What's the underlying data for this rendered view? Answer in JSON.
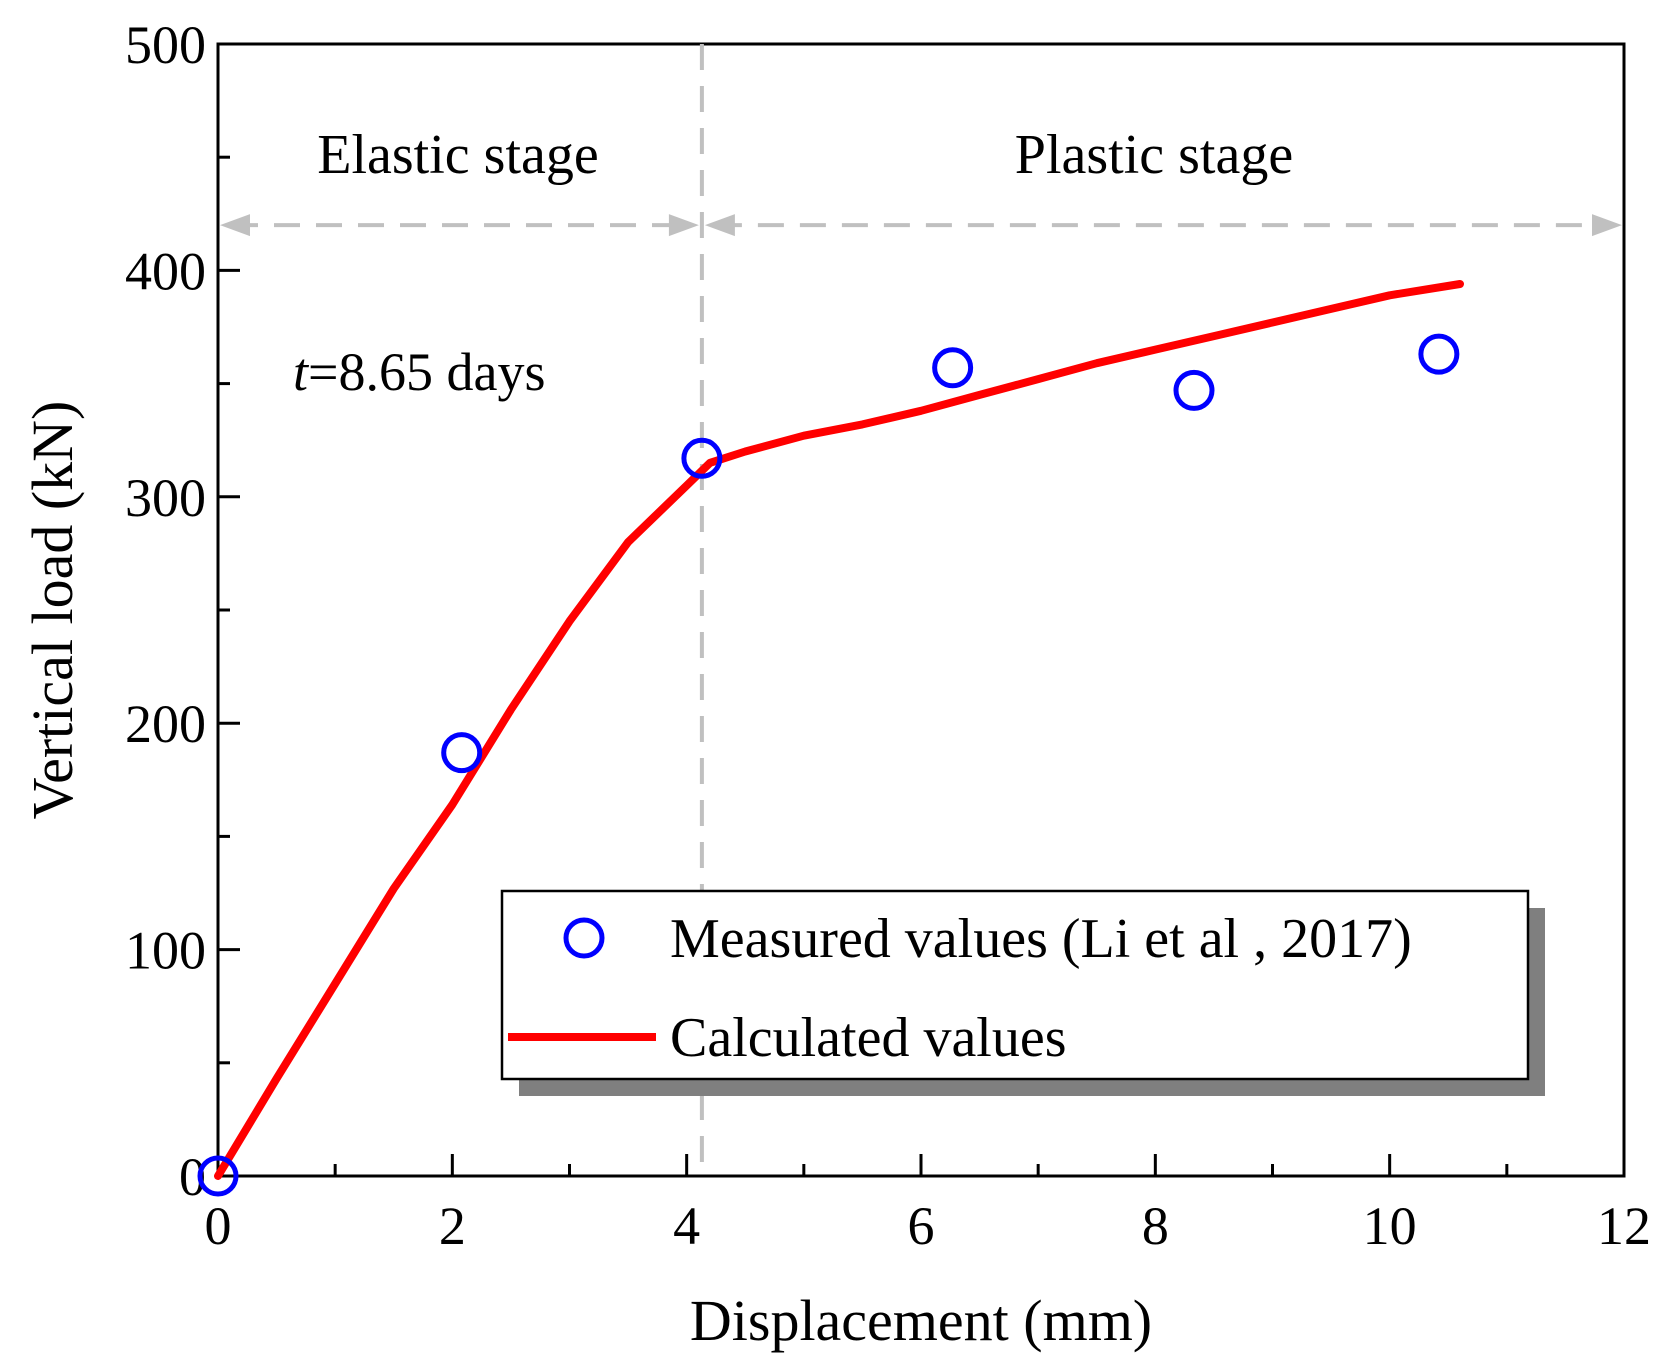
{
  "chart_data": {
    "type": "scatter+line",
    "title": "",
    "xlabel": "Displacement (mm)",
    "ylabel": "Vertical load (kN)",
    "xlim": [
      0,
      12
    ],
    "ylim": [
      0,
      500
    ],
    "x_ticks": [
      0,
      2,
      4,
      6,
      8,
      10,
      12
    ],
    "y_ticks": [
      0,
      100,
      200,
      300,
      400,
      500
    ],
    "x_tick_labels": [
      "0",
      "2",
      "4",
      "6",
      "8",
      "10",
      "12"
    ],
    "y_tick_labels": [
      "0",
      "100",
      "200",
      "300",
      "400",
      "500"
    ],
    "grid": false,
    "series": [
      {
        "name": "Measured values (Li et al , 2017)",
        "kind": "scatter",
        "marker": "open-circle",
        "color": "#0000ff",
        "x": [
          0,
          2.08,
          4.13,
          6.27,
          8.33,
          10.42
        ],
        "y": [
          0,
          187,
          317,
          357,
          347,
          363
        ]
      },
      {
        "name": "Calculated values",
        "kind": "line",
        "color": "#ff0000",
        "x": [
          0,
          0.5,
          1.0,
          1.5,
          2.0,
          2.5,
          3.0,
          3.5,
          4.0,
          4.2,
          4.5,
          5.0,
          5.5,
          6.0,
          6.5,
          7.0,
          7.5,
          8.0,
          8.5,
          9.0,
          9.5,
          10.0,
          10.6
        ],
        "y": [
          0,
          43,
          85,
          127,
          164,
          206,
          245,
          280,
          305,
          315,
          320,
          327,
          332,
          338,
          345,
          352,
          359,
          365,
          371,
          377,
          383,
          389,
          394
        ]
      }
    ],
    "stage_divider_x": 4.13,
    "stage_arrow_y": 420,
    "annotations": {
      "elastic_stage": "Elastic stage",
      "plastic_stage": "Plastic stage",
      "time_var": "t",
      "time_value": "=8.65 days"
    },
    "legend": {
      "placement": "bottom-right",
      "entries": [
        "Measured values (Li et al , 2017)",
        "Calculated values"
      ]
    }
  }
}
